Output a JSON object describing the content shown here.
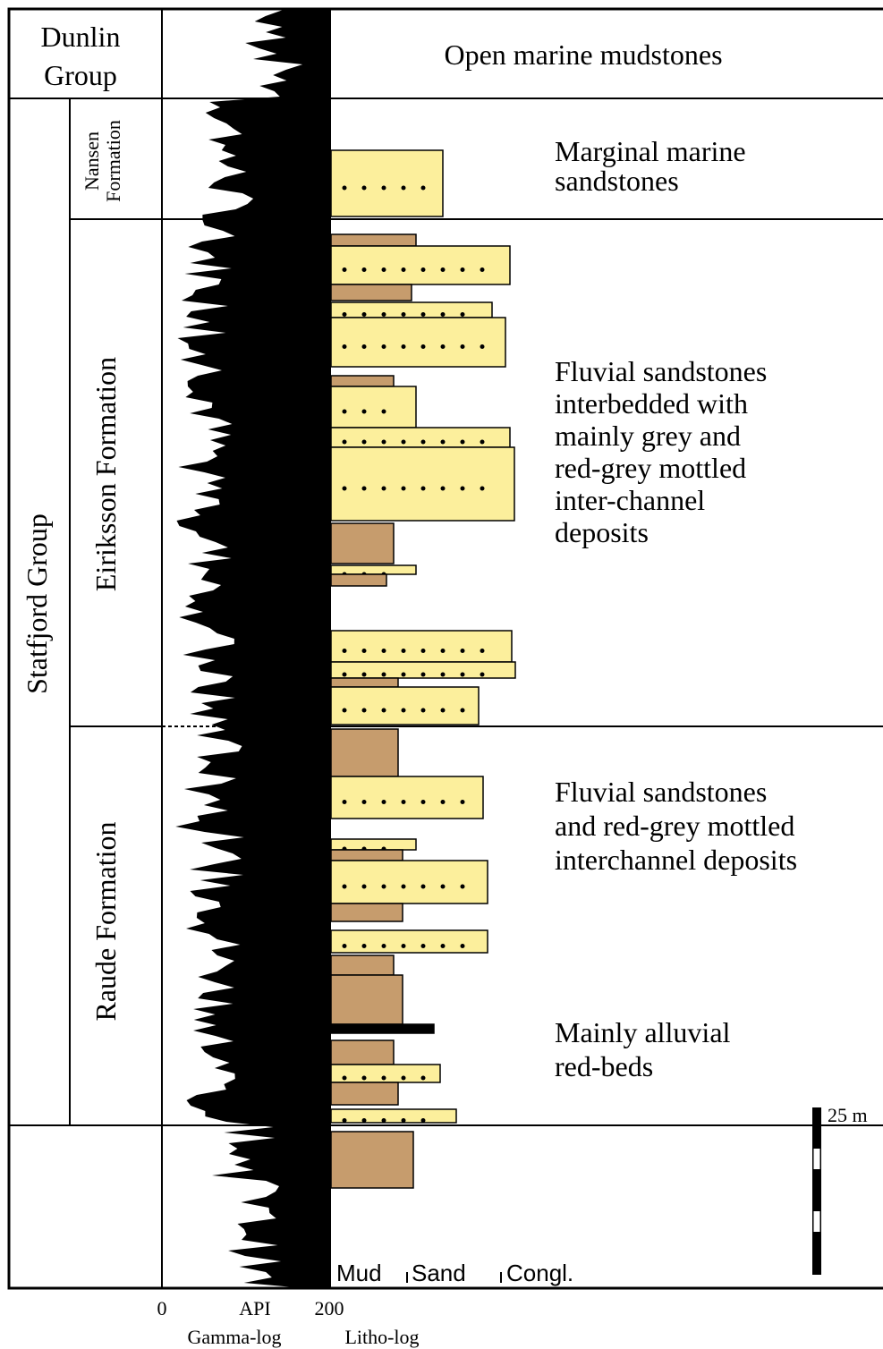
{
  "columns": {
    "dunlin_group": [
      "Dunlin",
      "Group"
    ],
    "statfjord_group": "Statfjord Group",
    "nansen_formation": [
      "Nansen",
      "Formation"
    ],
    "eiriksson_formation": "Eiriksson Formation",
    "raude_formation": "Raude Formation"
  },
  "descriptions": {
    "open_marine": "Open marine mudstones",
    "marginal_marine": [
      "Marginal marine",
      "sandstones"
    ],
    "fluvial_interbedded": [
      "Fluvial sandstones",
      "interbedded with",
      "mainly grey and",
      "red-grey mottled",
      "inter-channel",
      "deposits"
    ],
    "fluvial_red_grey": [
      "Fluvial sandstones",
      "and red-grey mottled",
      "interchannel deposits"
    ],
    "alluvial": [
      "Mainly alluvial",
      "red-beds"
    ]
  },
  "scale_bar": "25 m",
  "grain_size": [
    "Mud",
    "Sand",
    "Congl."
  ],
  "gamma_log": {
    "min": "0",
    "unit": "API",
    "max": "200",
    "label": "Gamma-log"
  },
  "litho_log": {
    "label": "Litho-log"
  }
}
